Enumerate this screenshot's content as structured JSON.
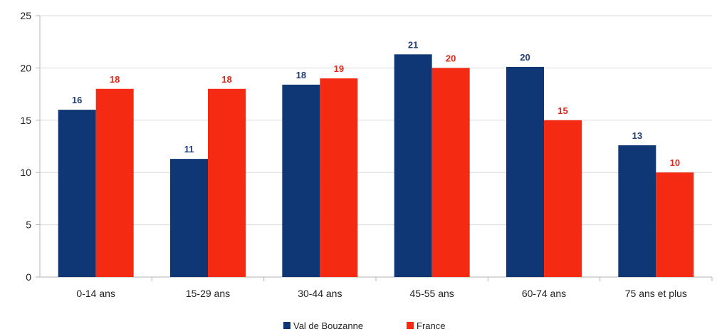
{
  "chart_data": {
    "type": "bar",
    "categories": [
      "0-14 ans",
      "15-29 ans",
      "30-44 ans",
      "45-55 ans",
      "60-74 ans",
      "75 ans et plus"
    ],
    "series": [
      {
        "name": "Val de Bouzanne",
        "values": [
          16,
          11.3,
          18.4,
          21.3,
          20.1,
          12.6
        ],
        "labels": [
          "16",
          "11",
          "18",
          "21",
          "20",
          "13"
        ],
        "color": "#0f3775"
      },
      {
        "name": "France",
        "values": [
          18,
          18,
          19,
          20,
          15,
          10
        ],
        "labels": [
          "18",
          "18",
          "19",
          "20",
          "15",
          "10"
        ],
        "color": "#f42a12"
      }
    ],
    "yticks": [
      "0",
      "5",
      "10",
      "15",
      "20",
      "25"
    ],
    "ylim": [
      0,
      25
    ],
    "grid": true,
    "legend_position": "bottom-center",
    "title": "",
    "xlabel": "",
    "ylabel": ""
  }
}
